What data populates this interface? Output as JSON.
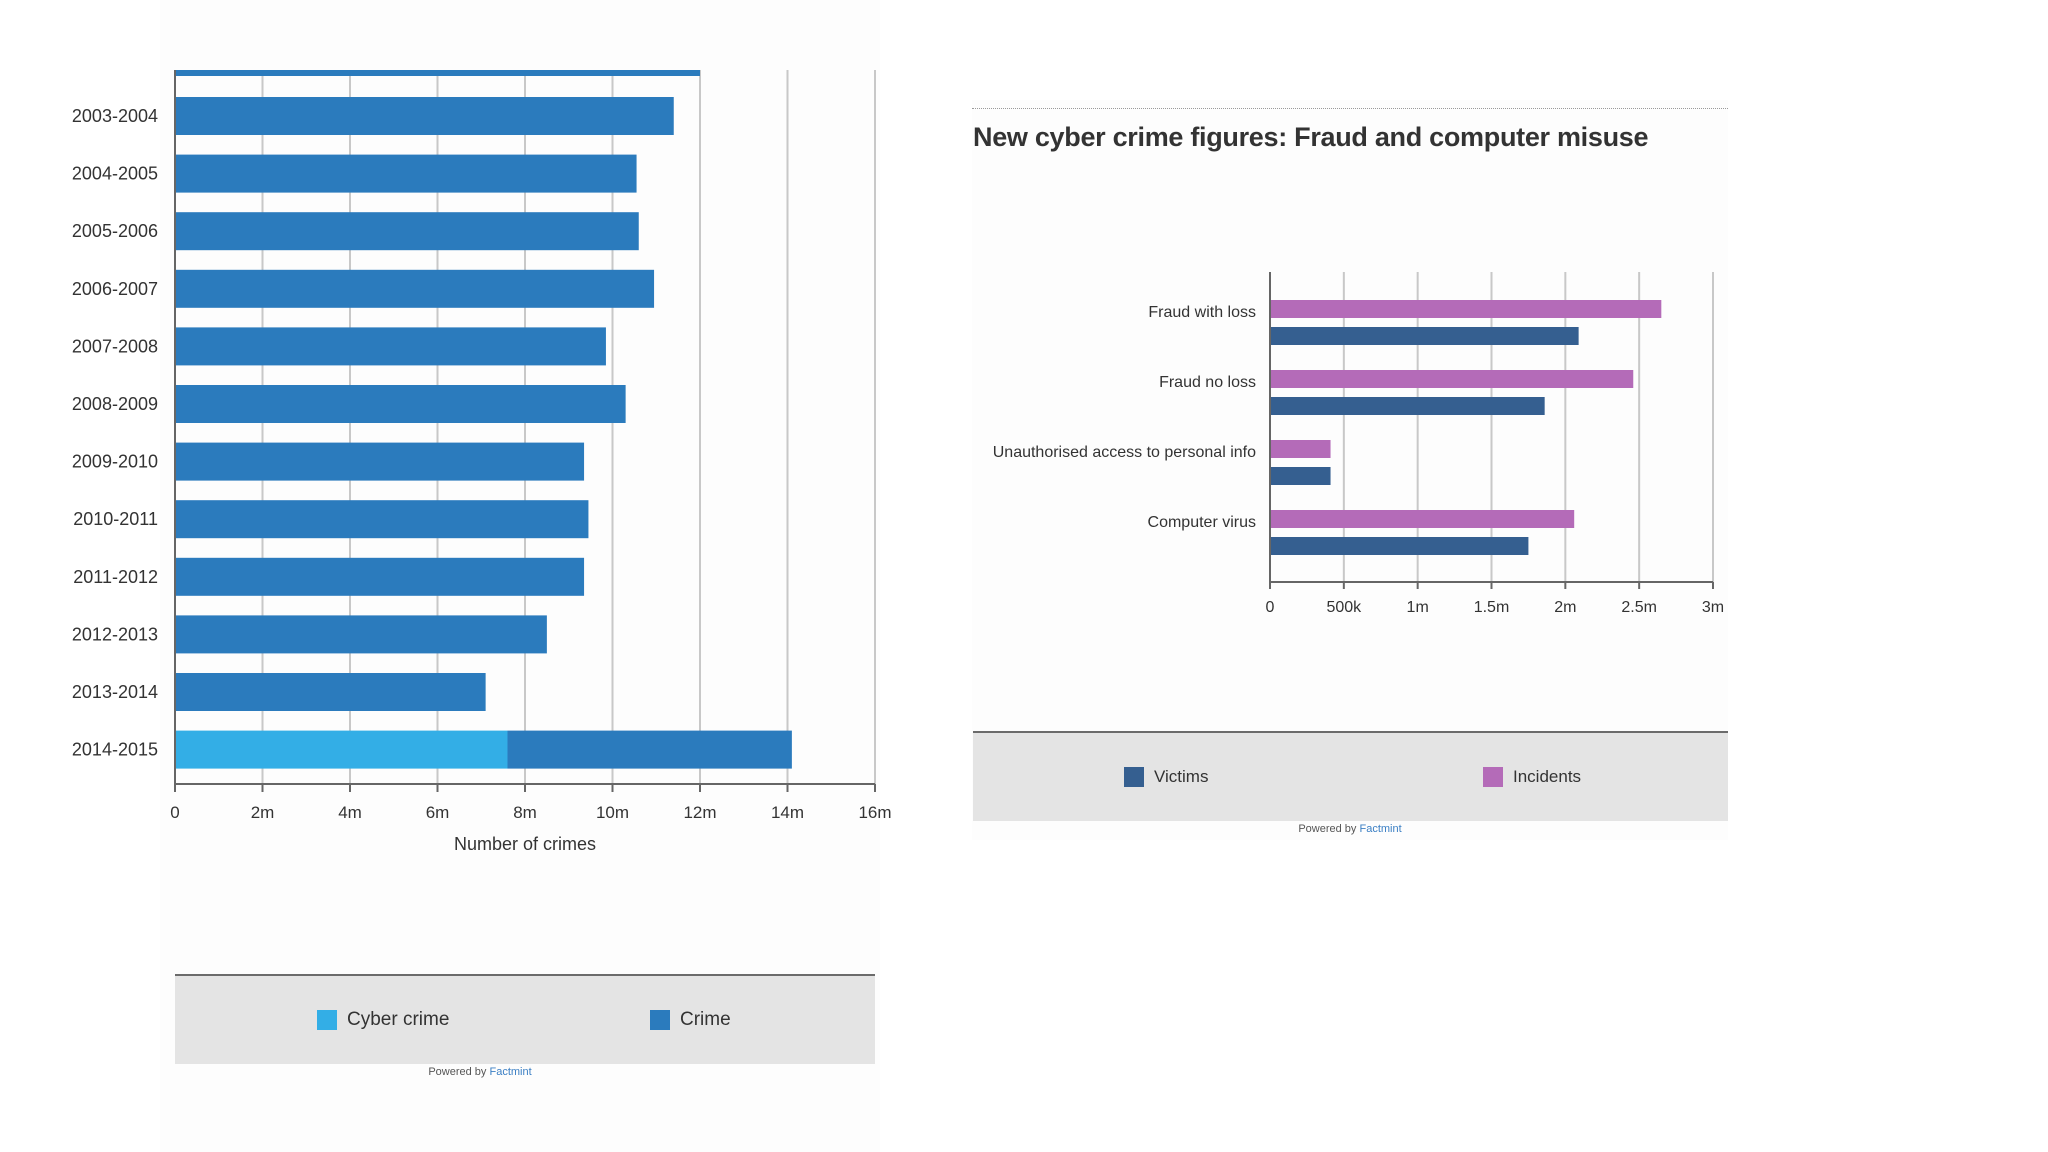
{
  "chart_data": [
    {
      "id": "crimes",
      "type": "bar",
      "orientation": "horizontal",
      "stacked": true,
      "title": "",
      "categories": [
        "2003-2004",
        "2004-2005",
        "2005-2006",
        "2006-2007",
        "2007-2008",
        "2008-2009",
        "2009-2010",
        "2010-2011",
        "2011-2012",
        "2012-2013",
        "2013-2014",
        "2014-2015"
      ],
      "series": [
        {
          "name": "Cyber crime",
          "color": "#33aee6",
          "values": [
            0,
            0,
            0,
            0,
            0,
            0,
            0,
            0,
            0,
            0,
            0,
            7.6
          ]
        },
        {
          "name": "Crime",
          "color": "#2b7bbd",
          "values": [
            11.4,
            10.55,
            10.6,
            10.95,
            9.85,
            10.3,
            9.35,
            9.45,
            9.35,
            8.5,
            7.1,
            6.5
          ]
        }
      ],
      "xlabel": "Number of crimes",
      "xlim": [
        0,
        16
      ],
      "ticks": [
        0,
        2,
        4,
        6,
        8,
        10,
        12,
        14,
        16
      ],
      "tick_labels": [
        "0",
        "2m",
        "4m",
        "6m",
        "8m",
        "10m",
        "12m",
        "14m",
        "16m"
      ],
      "grid": true
    },
    {
      "id": "fraud",
      "type": "bar",
      "orientation": "horizontal",
      "stacked": false,
      "title": "New cyber crime figures: Fraud and computer misuse",
      "categories": [
        "Fraud with loss",
        "Fraud no loss",
        "Unauthorised access to personal info",
        "Computer virus"
      ],
      "series": [
        {
          "name": "Incidents",
          "color": "#b46bb8",
          "values": [
            2.65,
            2.46,
            0.41,
            2.06
          ]
        },
        {
          "name": "Victims",
          "color": "#355f90",
          "values": [
            2.09,
            1.86,
            0.41,
            1.75
          ]
        }
      ],
      "xlim": [
        0,
        3
      ],
      "ticks": [
        0,
        0.5,
        1,
        1.5,
        2,
        2.5,
        3
      ],
      "tick_labels": [
        "0",
        "500k",
        "1m",
        "1.5m",
        "2m",
        "2.5m",
        "3m"
      ],
      "grid": true
    }
  ],
  "legend1": {
    "items": [
      {
        "label": "Cyber crime",
        "color": "#33aee6"
      },
      {
        "label": "Crime",
        "color": "#2b7bbd"
      }
    ]
  },
  "legend2": {
    "items": [
      {
        "label": "Victims",
        "color": "#355f90"
      },
      {
        "label": "Incidents",
        "color": "#b46bb8"
      }
    ]
  },
  "powered": {
    "prefix": "Powered by ",
    "brand": "Factmint"
  },
  "chart2_title": "New cyber crime figures: Fraud and computer misuse"
}
